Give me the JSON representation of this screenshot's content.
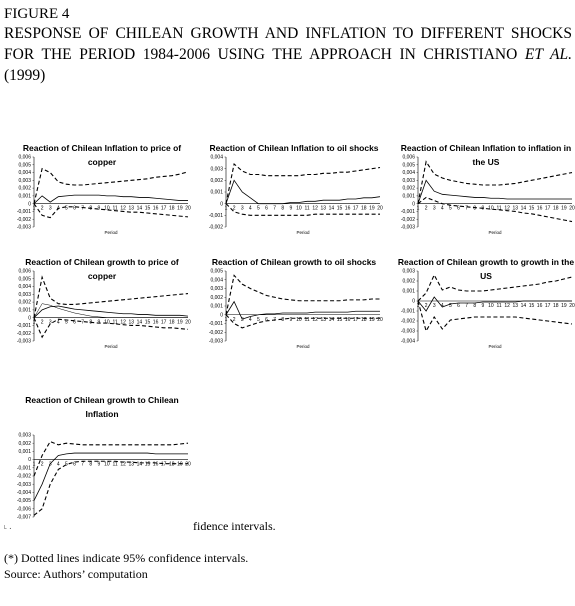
{
  "figure_label": "FIGURE 4",
  "figure_title": "RESPONSE OF CHILEAN GROWTH AND INFLATION TO DIFFERENT SHOCKS FOR THE PERIOD 1984-2006 USING THE APPROACH IN CHRISTIANO",
  "figure_title_italic": "ET AL.",
  "figure_title_end": "(1999)",
  "artifact_text": "fidence intervals.",
  "corner_mark": "˪ .",
  "note": "(*) Dotted lines indicate 95% confidence intervals.",
  "source": "Source: Authors’ computation",
  "chart_data": [
    {
      "type": "line",
      "title": "Reaction of Chilean Inflation to price of copper",
      "xlabel": "Period",
      "x": [
        1,
        2,
        3,
        4,
        5,
        6,
        7,
        8,
        9,
        10,
        11,
        12,
        13,
        14,
        15,
        16,
        17,
        18,
        19,
        20
      ],
      "yticks": [
        "0,006",
        "0,005",
        "0,004",
        "0,003",
        "0,002",
        "0,001",
        "0",
        "-0,001",
        "-0,002",
        "-0,003"
      ],
      "ylim": [
        -0.003,
        0.006
      ],
      "series": [
        {
          "style": "solid",
          "values": [
            0.0,
            0.001,
            0.0002,
            0.0009,
            0.001,
            0.0011,
            0.0011,
            0.0011,
            0.0011,
            0.001,
            0.001,
            0.0009,
            0.0009,
            0.0008,
            0.0008,
            0.0007,
            0.0006,
            0.0005,
            0.0004,
            0.0004
          ]
        },
        {
          "style": "dashed",
          "values": [
            0.0,
            0.0045,
            0.004,
            0.0028,
            0.0025,
            0.0024,
            0.0024,
            0.0025,
            0.0026,
            0.0027,
            0.0028,
            0.0029,
            0.003,
            0.0031,
            0.0032,
            0.0034,
            0.0035,
            0.0036,
            0.0038,
            0.0041
          ]
        },
        {
          "style": "dashed",
          "values": [
            0.0,
            -0.0015,
            -0.0018,
            -0.0006,
            -0.0004,
            -0.0004,
            -0.0005,
            -0.0006,
            -0.0007,
            -0.0008,
            -0.0009,
            -0.001,
            -0.0011,
            -0.0011,
            -0.0012,
            -0.0013,
            -0.0014,
            -0.0015,
            -0.0016,
            -0.0017
          ]
        }
      ]
    },
    {
      "type": "line",
      "title": "Reaction of Chilean Inflation to oil shocks",
      "xlabel": "Period",
      "x": [
        1,
        2,
        3,
        4,
        5,
        6,
        7,
        8,
        9,
        10,
        11,
        12,
        13,
        14,
        15,
        16,
        17,
        18,
        19,
        20
      ],
      "yticks": [
        "0,004",
        "0,003",
        "0,002",
        "0,001",
        "0",
        "-0,001",
        "-0,002"
      ],
      "ylim": [
        -0.002,
        0.004
      ],
      "series": [
        {
          "style": "solid",
          "values": [
            0.0,
            0.002,
            0.001,
            0.0005,
            0.0,
            0.0,
            0.0,
            0.0,
            0.0001,
            0.0001,
            0.0002,
            0.0002,
            0.0003,
            0.0003,
            0.0003,
            0.0004,
            0.0004,
            0.0005,
            0.0005,
            0.0006
          ]
        },
        {
          "style": "dashed",
          "values": [
            0.0,
            0.0034,
            0.0028,
            0.0025,
            0.0025,
            0.0024,
            0.0024,
            0.0024,
            0.0024,
            0.0024,
            0.0025,
            0.0025,
            0.0026,
            0.0026,
            0.0027,
            0.0027,
            0.0028,
            0.0029,
            0.003,
            0.0031
          ]
        },
        {
          "style": "dashed",
          "values": [
            0.0,
            -0.0007,
            -0.0009,
            -0.001,
            -0.001,
            -0.001,
            -0.001,
            -0.001,
            -0.001,
            -0.001,
            -0.001,
            -0.0009,
            -0.0009,
            -0.0009,
            -0.0009,
            -0.0009,
            -0.0009,
            -0.0009,
            -0.0009,
            -0.0009
          ]
        }
      ]
    },
    {
      "type": "line",
      "title": "Reaction of Chilean Inflation to inflation in the US",
      "xlabel": "Period",
      "x": [
        1,
        2,
        3,
        4,
        5,
        6,
        7,
        8,
        9,
        10,
        11,
        12,
        13,
        14,
        15,
        16,
        17,
        18,
        19,
        20
      ],
      "yticks": [
        "0,006",
        "0,005",
        "0,004",
        "0,003",
        "0,002",
        "0,001",
        "0",
        "-0,001",
        "-0,002",
        "-0,003"
      ],
      "ylim": [
        -0.003,
        0.006
      ],
      "series": [
        {
          "style": "solid",
          "values": [
            0.0,
            0.003,
            0.0016,
            0.0012,
            0.0011,
            0.001,
            0.0009,
            0.0008,
            0.0008,
            0.0007,
            0.0007,
            0.0006,
            0.0006,
            0.0006,
            0.0006,
            0.0006,
            0.0006,
            0.0006,
            0.0006,
            0.0006
          ]
        },
        {
          "style": "dashed",
          "values": [
            0.0,
            0.0054,
            0.0038,
            0.0033,
            0.003,
            0.0028,
            0.0026,
            0.0025,
            0.0024,
            0.0024,
            0.0024,
            0.0025,
            0.0026,
            0.0028,
            0.003,
            0.0032,
            0.0034,
            0.0036,
            0.0038,
            0.004
          ]
        },
        {
          "style": "dashed",
          "values": [
            0.0,
            0.0008,
            0.0004,
            0.0,
            -0.0002,
            -0.0003,
            -0.0004,
            -0.0005,
            -0.0006,
            -0.0007,
            -0.0008,
            -0.0009,
            -0.001,
            -0.0012,
            -0.0013,
            -0.0015,
            -0.0017,
            -0.0019,
            -0.0021,
            -0.0023
          ]
        }
      ]
    },
    {
      "type": "line",
      "title": "Reaction of Chilean growth to price of copper",
      "xlabel": "Period",
      "x": [
        1,
        2,
        3,
        4,
        5,
        6,
        7,
        8,
        9,
        10,
        11,
        12,
        13,
        14,
        15,
        16,
        17,
        18,
        19,
        20
      ],
      "yticks": [
        "0,006",
        "0,005",
        "0,004",
        "0,003",
        "0,002",
        "0,001",
        "0",
        "-0,001",
        "-0,002",
        "-0,003"
      ],
      "ylim": [
        -0.003,
        0.006
      ],
      "series": [
        {
          "style": "solid",
          "values": [
            0.0,
            0.001,
            0.0014,
            0.0015,
            0.0013,
            0.0011,
            0.001,
            0.0009,
            0.0008,
            0.0007,
            0.0006,
            0.0005,
            0.0005,
            0.0004,
            0.0004,
            0.0003,
            0.0003,
            0.0003,
            0.0003,
            0.0002
          ]
        },
        {
          "style": "dashed",
          "values": [
            0.0,
            0.0052,
            0.0025,
            0.0018,
            0.0017,
            0.0017,
            0.0018,
            0.0019,
            0.002,
            0.0021,
            0.0022,
            0.0023,
            0.0024,
            0.0025,
            0.0026,
            0.0027,
            0.0028,
            0.0029,
            0.003,
            0.0031
          ]
        },
        {
          "style": "dashed",
          "values": [
            0.0,
            -0.0025,
            -0.0008,
            -0.0002,
            -0.0003,
            -0.0004,
            -0.0005,
            -0.0006,
            -0.0007,
            -0.0007,
            -0.0008,
            -0.0009,
            -0.001,
            -0.001,
            -0.0011,
            -0.0012,
            -0.0013,
            -0.0013,
            -0.0014,
            -0.0015
          ]
        },
        {
          "style": "solid-thin",
          "values": [
            0.0,
            0.0018,
            0.0016,
            0.0012,
            0.0009,
            0.0006,
            0.0004,
            0.0002,
            0.0001,
            0.0,
            0.0,
            0.0,
            0.0,
            0.0,
            0.0,
            0.0,
            0.0,
            0.0,
            0.0,
            0.0
          ]
        }
      ]
    },
    {
      "type": "line",
      "title": "Reaction of Chilean growth to oil shocks",
      "xlabel": "Period",
      "x": [
        1,
        2,
        3,
        4,
        5,
        6,
        7,
        8,
        9,
        10,
        11,
        12,
        13,
        14,
        15,
        16,
        17,
        18,
        19,
        20
      ],
      "yticks": [
        "0,005",
        "0,004",
        "0,003",
        "0,002",
        "0,001",
        "0",
        "-0,001",
        "-0,002",
        "-0,003"
      ],
      "ylim": [
        -0.003,
        0.005
      ],
      "series": [
        {
          "style": "solid",
          "values": [
            0.0,
            0.0015,
            -0.0005,
            -0.0002,
            0.0,
            0.0001,
            0.0001,
            0.0002,
            0.0002,
            0.0002,
            0.0002,
            0.0003,
            0.0003,
            0.0003,
            0.0003,
            0.0003,
            0.0004,
            0.0004,
            0.0004,
            0.0004
          ]
        },
        {
          "style": "dashed",
          "values": [
            0.0,
            0.0045,
            0.0035,
            0.003,
            0.0026,
            0.0022,
            0.002,
            0.0018,
            0.0017,
            0.0016,
            0.0016,
            0.0016,
            0.0016,
            0.0016,
            0.0016,
            0.0017,
            0.0017,
            0.0017,
            0.0018,
            0.0018
          ]
        },
        {
          "style": "dashed",
          "values": [
            0.0,
            -0.001,
            -0.0015,
            -0.0012,
            -0.0009,
            -0.0007,
            -0.0006,
            -0.0005,
            -0.0004,
            -0.0004,
            -0.0004,
            -0.0004,
            -0.0004,
            -0.0004,
            -0.0004,
            -0.0004,
            -0.0004,
            -0.0004,
            -0.0004,
            -0.0004
          ]
        }
      ]
    },
    {
      "type": "line",
      "title": "Reaction of Chilean growth to growth in the US",
      "xlabel": "Period",
      "x": [
        1,
        2,
        3,
        4,
        5,
        6,
        7,
        8,
        9,
        10,
        11,
        12,
        13,
        14,
        15,
        16,
        17,
        18,
        19,
        20
      ],
      "yticks": [
        "0,003",
        "0,002",
        "0,001",
        "0",
        "-0,001",
        "-0,002",
        "-0,003",
        "-0,004"
      ],
      "ylim": [
        -0.004,
        0.003
      ],
      "series": [
        {
          "style": "solid",
          "values": [
            0.0,
            -0.001,
            0.0004,
            -0.0006,
            -0.0003,
            -0.0002,
            -0.0002,
            -0.0002,
            -0.0001,
            -0.0001,
            -0.0001,
            -0.0001,
            -0.0001,
            0.0,
            0.0,
            0.0,
            0.0,
            0.0,
            0.0,
            0.0
          ]
        },
        {
          "style": "dashed",
          "values": [
            0.0,
            0.0008,
            0.0026,
            0.0011,
            0.0014,
            0.0011,
            0.001,
            0.001,
            0.001,
            0.0011,
            0.0012,
            0.0013,
            0.0014,
            0.0015,
            0.0016,
            0.0017,
            0.0019,
            0.002,
            0.0022,
            0.0024
          ]
        },
        {
          "style": "dashed",
          "values": [
            0.0,
            -0.003,
            -0.0016,
            -0.0028,
            -0.0019,
            -0.0018,
            -0.0017,
            -0.0016,
            -0.0016,
            -0.0016,
            -0.0016,
            -0.0016,
            -0.0016,
            -0.0017,
            -0.0018,
            -0.0019,
            -0.002,
            -0.0021,
            -0.0022,
            -0.0023
          ]
        }
      ]
    },
    {
      "type": "line",
      "title": "Reaction of Chilean growth to Chilean Inflation",
      "xlabel": "",
      "x": [
        1,
        2,
        3,
        4,
        5,
        6,
        7,
        8,
        9,
        10,
        11,
        12,
        13,
        14,
        15,
        16,
        17,
        18,
        19,
        20
      ],
      "yticks": [
        "0,003",
        "0,002",
        "0,001",
        "0",
        "-0,001",
        "-0,002",
        "-0,003",
        "-0,004",
        "-0,005",
        "-0,006",
        "-0,007"
      ],
      "ylim": [
        -0.007,
        0.003
      ],
      "series": [
        {
          "style": "solid",
          "values": [
            -0.005,
            -0.003,
            -0.0005,
            0.0005,
            0.0007,
            0.0008,
            0.0008,
            0.0008,
            0.0008,
            0.0008,
            0.0008,
            0.0008,
            0.0008,
            0.0008,
            0.0008,
            0.0007,
            0.0007,
            0.0007,
            0.0007,
            0.0007
          ]
        },
        {
          "style": "dashed",
          "values": [
            -0.002,
            0.0005,
            0.0022,
            0.0018,
            0.002,
            0.0019,
            0.0018,
            0.0018,
            0.0018,
            0.0018,
            0.0018,
            0.0018,
            0.0018,
            0.0018,
            0.0018,
            0.0018,
            0.0018,
            0.0018,
            0.0019,
            0.002
          ]
        },
        {
          "style": "dashed",
          "values": [
            -0.0068,
            -0.006,
            -0.003,
            -0.0012,
            -0.0006,
            -0.0003,
            -0.0002,
            -0.0002,
            -0.0002,
            -0.0002,
            -0.0002,
            -0.0003,
            -0.0003,
            -0.0004,
            -0.0004,
            -0.0004,
            -0.0005,
            -0.0005,
            -0.0005,
            -0.0005
          ]
        }
      ]
    }
  ]
}
